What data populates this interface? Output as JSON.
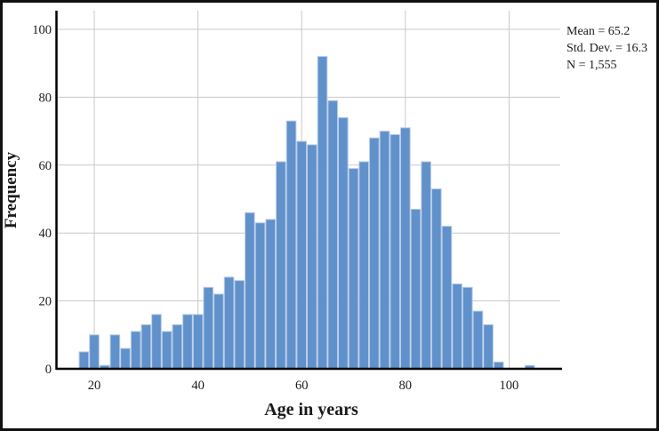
{
  "chart_data": {
    "type": "bar",
    "subtype": "histogram",
    "title": "",
    "xlabel": "Age in years",
    "ylabel": "Frequency",
    "x_ticks": [
      20,
      40,
      60,
      80,
      100
    ],
    "y_ticks": [
      0,
      20,
      40,
      60,
      80,
      100
    ],
    "xlim": [
      13,
      110
    ],
    "ylim": [
      0,
      105
    ],
    "grid": true,
    "bin_start": 17,
    "bin_width": 2,
    "frequencies": [
      5,
      10,
      1,
      10,
      6,
      11,
      13,
      16,
      11,
      13,
      16,
      16,
      24,
      22,
      27,
      26,
      46,
      43,
      44,
      61,
      73,
      67,
      66,
      92,
      79,
      74,
      59,
      61,
      68,
      70,
      69,
      71,
      47,
      61,
      53,
      42,
      25,
      24,
      17,
      13,
      2,
      0,
      0,
      1
    ],
    "stats_box": {
      "position": "top-right-outside-plot",
      "lines": [
        "Mean = 65.2",
        "Std. Dev. = 16.3",
        "N = 1,555"
      ]
    },
    "colors": {
      "bar_fill": "#6191CA",
      "bar_edge": "#B7CDE9",
      "gridline": "#C8C8C8",
      "axis": "#000000",
      "text": "#1A1A1A",
      "background": "#FFFFFF"
    }
  }
}
